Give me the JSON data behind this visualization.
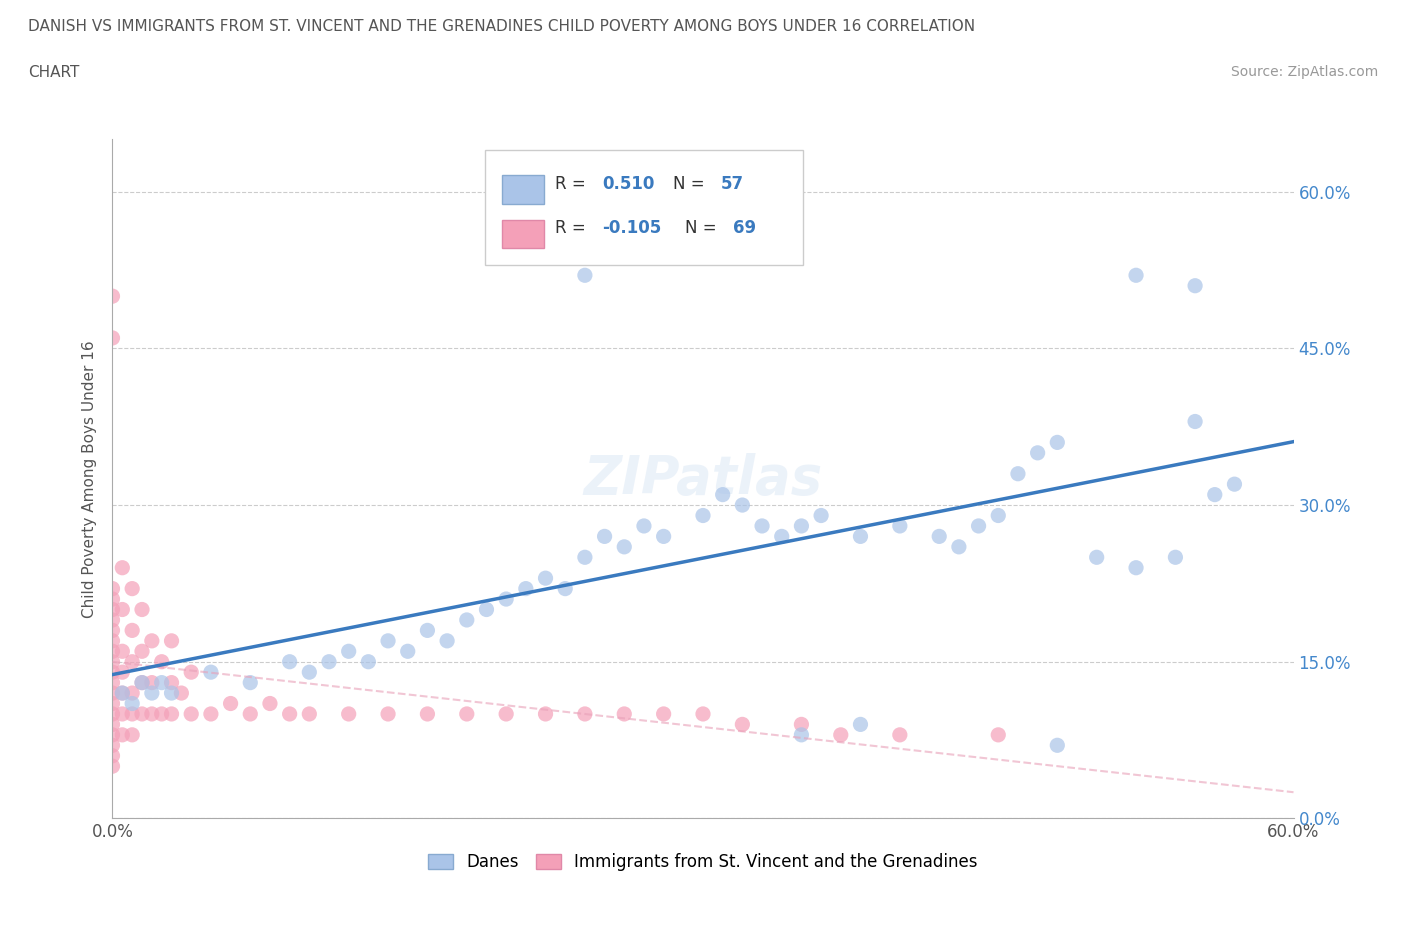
{
  "title_line1": "DANISH VS IMMIGRANTS FROM ST. VINCENT AND THE GRENADINES CHILD POVERTY AMONG BOYS UNDER 16 CORRELATION",
  "title_line2": "CHART",
  "source": "Source: ZipAtlas.com",
  "ylabel": "Child Poverty Among Boys Under 16",
  "xlim": [
    0.0,
    0.6
  ],
  "ylim": [
    0.0,
    0.65
  ],
  "yticks": [
    0.0,
    0.15,
    0.3,
    0.45,
    0.6
  ],
  "xticks": [
    0.0,
    0.6
  ],
  "right_ytick_labels": [
    "0.0%",
    "15.0%",
    "30.0%",
    "45.0%",
    "60.0%"
  ],
  "bottom_xtick_labels": [
    "0.0%",
    "60.0%"
  ],
  "dane_R": 0.51,
  "dane_N": 57,
  "immigrant_R": -0.105,
  "immigrant_N": 69,
  "dane_color": "#aac4e8",
  "immigrant_color": "#f4a0b8",
  "trendline_blue_color": "#3a7abf",
  "trendline_pink_color": "#e8a0b8",
  "watermark": "ZIPatlas",
  "legend_dane_color": "#aac4e8",
  "legend_imm_color": "#f4a0b8",
  "danes_x": [
    0.005,
    0.01,
    0.015,
    0.02,
    0.025,
    0.03,
    0.05,
    0.07,
    0.09,
    0.1,
    0.11,
    0.12,
    0.13,
    0.14,
    0.15,
    0.16,
    0.17,
    0.18,
    0.19,
    0.2,
    0.21,
    0.22,
    0.23,
    0.24,
    0.25,
    0.26,
    0.27,
    0.28,
    0.3,
    0.31,
    0.32,
    0.33,
    0.34,
    0.35,
    0.36,
    0.38,
    0.4,
    0.42,
    0.43,
    0.44,
    0.45,
    0.46,
    0.47,
    0.48,
    0.5,
    0.52,
    0.54,
    0.55,
    0.56,
    0.57,
    0.22,
    0.24,
    0.35,
    0.38,
    0.48,
    0.52,
    0.55
  ],
  "danes_y": [
    0.12,
    0.11,
    0.13,
    0.12,
    0.13,
    0.12,
    0.14,
    0.13,
    0.15,
    0.14,
    0.15,
    0.16,
    0.15,
    0.17,
    0.16,
    0.18,
    0.17,
    0.19,
    0.2,
    0.21,
    0.22,
    0.23,
    0.22,
    0.25,
    0.27,
    0.26,
    0.28,
    0.27,
    0.29,
    0.31,
    0.3,
    0.28,
    0.27,
    0.28,
    0.29,
    0.27,
    0.28,
    0.27,
    0.26,
    0.28,
    0.29,
    0.33,
    0.35,
    0.36,
    0.25,
    0.24,
    0.25,
    0.38,
    0.31,
    0.32,
    0.57,
    0.52,
    0.08,
    0.09,
    0.07,
    0.52,
    0.51
  ],
  "immigrants_x": [
    0.0,
    0.0,
    0.0,
    0.0,
    0.0,
    0.0,
    0.0,
    0.0,
    0.0,
    0.0,
    0.0,
    0.0,
    0.0,
    0.0,
    0.0,
    0.0,
    0.0,
    0.0,
    0.0,
    0.0,
    0.005,
    0.005,
    0.005,
    0.005,
    0.005,
    0.005,
    0.005,
    0.01,
    0.01,
    0.01,
    0.01,
    0.01,
    0.01,
    0.015,
    0.015,
    0.015,
    0.015,
    0.02,
    0.02,
    0.02,
    0.025,
    0.025,
    0.03,
    0.03,
    0.03,
    0.035,
    0.04,
    0.04,
    0.05,
    0.06,
    0.07,
    0.08,
    0.09,
    0.1,
    0.12,
    0.14,
    0.16,
    0.18,
    0.2,
    0.22,
    0.24,
    0.26,
    0.28,
    0.3,
    0.32,
    0.35,
    0.37,
    0.4,
    0.45
  ],
  "immigrants_y": [
    0.05,
    0.06,
    0.07,
    0.08,
    0.09,
    0.1,
    0.11,
    0.12,
    0.13,
    0.14,
    0.15,
    0.16,
    0.17,
    0.18,
    0.19,
    0.2,
    0.21,
    0.22,
    0.46,
    0.5,
    0.08,
    0.1,
    0.12,
    0.14,
    0.16,
    0.2,
    0.24,
    0.08,
    0.1,
    0.12,
    0.15,
    0.18,
    0.22,
    0.1,
    0.13,
    0.16,
    0.2,
    0.1,
    0.13,
    0.17,
    0.1,
    0.15,
    0.1,
    0.13,
    0.17,
    0.12,
    0.1,
    0.14,
    0.1,
    0.11,
    0.1,
    0.11,
    0.1,
    0.1,
    0.1,
    0.1,
    0.1,
    0.1,
    0.1,
    0.1,
    0.1,
    0.1,
    0.1,
    0.1,
    0.09,
    0.09,
    0.08,
    0.08,
    0.08
  ]
}
